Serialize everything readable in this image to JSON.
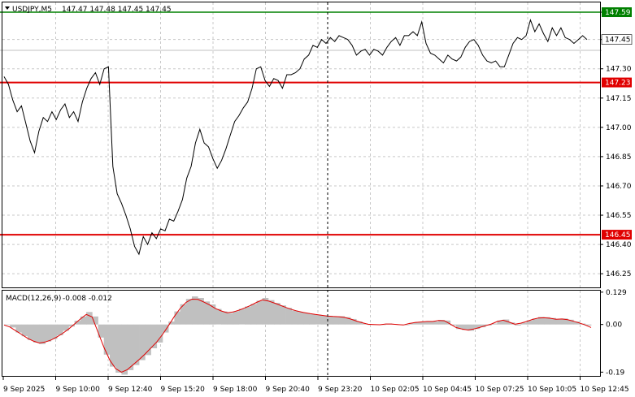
{
  "header": {
    "symbol_label": "USDJPY,M5",
    "ohlc": "147.47 147.48 147.45 147.45",
    "menu_icon": "triangle-down-icon"
  },
  "macd": {
    "label": "MACD(12,26,9)",
    "values": "-0.008 -0.012"
  },
  "chart_data": [
    {
      "type": "line",
      "title": "USDJPY,M5",
      "ylim": [
        146.18,
        147.64
      ],
      "y_ticks": [
        "147.59",
        "147.45",
        "147.30",
        "147.15",
        "147.00",
        "146.85",
        "146.70",
        "146.55",
        "146.40",
        "146.25"
      ],
      "x_tick_labels": [
        "9 Sep 2025",
        "9 Sep 10:00",
        "9 Sep 12:40",
        "9 Sep 15:20",
        "9 Sep 18:00",
        "9 Sep 20:40",
        "9 Sep 23:20",
        "10 Sep 02:05",
        "10 Sep 04:45",
        "10 Sep 07:25",
        "10 Sep 10:05",
        "10 Sep 12:45"
      ],
      "current_price": "147.45",
      "levels": [
        {
          "value": 147.59,
          "label": "147.59",
          "color": "#008000"
        },
        {
          "value": 147.23,
          "label": "147.23",
          "color": "#e00000"
        },
        {
          "value": 146.45,
          "label": "146.45",
          "color": "#e00000"
        }
      ],
      "series": [
        {
          "values": [
            147.26,
            147.22,
            147.14,
            147.08,
            147.11,
            147.02,
            146.93,
            146.87,
            146.98,
            147.05,
            147.03,
            147.08,
            147.04,
            147.09,
            147.12,
            147.05,
            147.08,
            147.03,
            147.13,
            147.2,
            147.25,
            147.28,
            147.22,
            147.3,
            147.31,
            146.8,
            146.66,
            146.61,
            146.55,
            146.48,
            146.39,
            146.35,
            146.44,
            146.4,
            146.46,
            146.43,
            146.48,
            146.47,
            146.53,
            146.52,
            146.57,
            146.63,
            146.74,
            146.8,
            146.92,
            146.99,
            146.92,
            146.9,
            146.84,
            146.79,
            146.83,
            146.89,
            146.96,
            147.03,
            147.06,
            147.1,
            147.13,
            147.2,
            147.3,
            147.31,
            147.24,
            147.21,
            147.25,
            147.24,
            147.2,
            147.27,
            147.27,
            147.28,
            147.3,
            147.35,
            147.37,
            147.42,
            147.41,
            147.45,
            147.43,
            147.46,
            147.44,
            147.47,
            147.46,
            147.45,
            147.42,
            147.37,
            147.39,
            147.4,
            147.37,
            147.4,
            147.39,
            147.37,
            147.41,
            147.44,
            147.46,
            147.42,
            147.47,
            147.47,
            147.49,
            147.47,
            147.54,
            147.43,
            147.38,
            147.37,
            147.35,
            147.33,
            147.37,
            147.35,
            147.34,
            147.36,
            147.41,
            147.44,
            147.45,
            147.42,
            147.37,
            147.34,
            147.33,
            147.34,
            147.31,
            147.31,
            147.37,
            147.43,
            147.46,
            147.45,
            147.47,
            147.55,
            147.49,
            147.53,
            147.48,
            147.44,
            147.51,
            147.47,
            147.51,
            147.46,
            147.45,
            147.43,
            147.45,
            147.47,
            147.45
          ]
        }
      ]
    },
    {
      "type": "area",
      "title": "MACD(12,26,9)",
      "ylim": [
        -0.205,
        0.135
      ],
      "y_ticks": [
        "0.129",
        "0.00",
        "-0.19"
      ],
      "series": [
        {
          "values": [
            -0.002,
            -0.012,
            -0.032,
            -0.047,
            -0.062,
            -0.072,
            -0.078,
            -0.068,
            -0.058,
            -0.043,
            -0.025,
            -0.008,
            0.015,
            0.032,
            0.05,
            0.032,
            -0.052,
            -0.12,
            -0.168,
            -0.192,
            -0.2,
            -0.182,
            -0.162,
            -0.142,
            -0.122,
            -0.095,
            -0.072,
            -0.032,
            0.012,
            0.052,
            0.081,
            0.102,
            0.112,
            0.106,
            0.092,
            0.08,
            0.062,
            0.052,
            0.046,
            0.053,
            0.062,
            0.072,
            0.082,
            0.095,
            0.106,
            0.097,
            0.086,
            0.076,
            0.066,
            0.056,
            0.05,
            0.046,
            0.041,
            0.039,
            0.036,
            0.034,
            0.032,
            0.033,
            0.029,
            0.022,
            0.012,
            0.004,
            -0.002,
            0.0,
            -0.002,
            0.004,
            0.002,
            0.0,
            -0.003,
            0.006,
            0.01,
            0.012,
            0.014,
            0.012,
            0.018,
            0.016,
            -0.004,
            -0.018,
            -0.022,
            -0.025,
            -0.018,
            -0.011,
            -0.004,
            0.004,
            0.016,
            0.02,
            0.008,
            -0.004,
            0.007,
            0.016,
            0.024,
            0.03,
            0.029,
            0.026,
            0.02,
            0.024,
            0.019,
            0.012,
            0.004,
            -0.004,
            -0.008
          ]
        },
        {
          "values": [
            -0.002,
            -0.01,
            -0.025,
            -0.04,
            -0.055,
            -0.066,
            -0.074,
            -0.07,
            -0.062,
            -0.05,
            -0.035,
            -0.018,
            0.002,
            0.022,
            0.04,
            0.03,
            -0.03,
            -0.09,
            -0.142,
            -0.176,
            -0.19,
            -0.18,
            -0.16,
            -0.14,
            -0.118,
            -0.094,
            -0.07,
            -0.04,
            -0.005,
            0.032,
            0.064,
            0.088,
            0.101,
            0.1,
            0.09,
            0.078,
            0.064,
            0.054,
            0.047,
            0.05,
            0.057,
            0.066,
            0.076,
            0.088,
            0.098,
            0.094,
            0.086,
            0.077,
            0.068,
            0.06,
            0.053,
            0.048,
            0.044,
            0.04,
            0.037,
            0.034,
            0.032,
            0.031,
            0.028,
            0.022,
            0.014,
            0.007,
            0.001,
            0.0,
            -0.001,
            0.002,
            0.002,
            0.0,
            -0.002,
            0.004,
            0.008,
            0.01,
            0.012,
            0.012,
            0.016,
            0.015,
            0.002,
            -0.012,
            -0.018,
            -0.022,
            -0.018,
            -0.012,
            -0.005,
            0.002,
            0.012,
            0.017,
            0.01,
            0.001,
            0.005,
            0.012,
            0.02,
            0.026,
            0.027,
            0.025,
            0.021,
            0.022,
            0.019,
            0.013,
            0.006,
            -0.002,
            -0.012
          ]
        }
      ]
    }
  ]
}
